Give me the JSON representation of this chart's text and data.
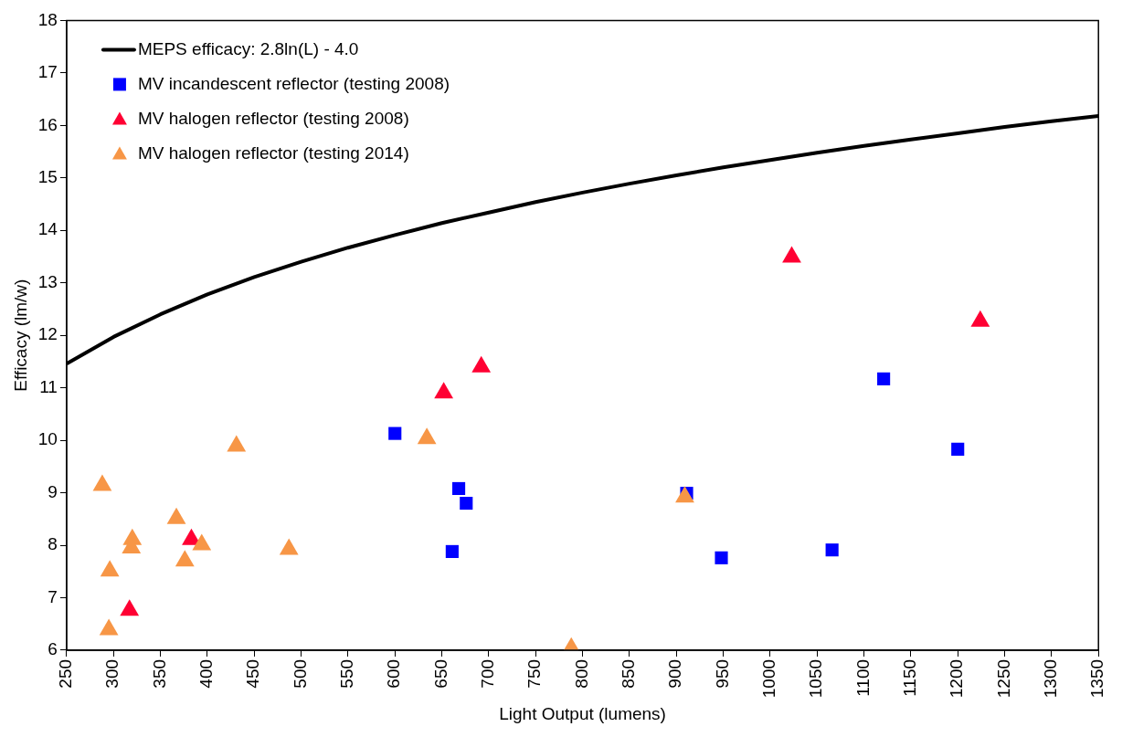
{
  "chart_data": {
    "type": "scatter",
    "xlabel": "Light Output (lumens)",
    "ylabel": "Efficacy (lm/w)",
    "xlim": [
      250,
      1350
    ],
    "xticks": [
      250,
      300,
      350,
      400,
      450,
      500,
      550,
      600,
      650,
      700,
      750,
      800,
      850,
      900,
      950,
      1000,
      1050,
      1100,
      1150,
      1200,
      1250,
      1300,
      1350
    ],
    "ylim": [
      6,
      18
    ],
    "yticks": [
      6,
      7,
      8,
      9,
      10,
      11,
      12,
      13,
      14,
      15,
      16,
      17,
      18
    ],
    "grid": false,
    "legend": "top left",
    "series": [
      {
        "name": "MEPS efficacy: 2.8ln(L) - 4.0",
        "type": "line",
        "color": "#000000",
        "marker": "none",
        "line_style": "solid",
        "x": [
          250,
          300,
          350,
          400,
          450,
          500,
          550,
          600,
          650,
          700,
          750,
          800,
          850,
          900,
          950,
          1000,
          1050,
          1100,
          1150,
          1200,
          1250,
          1300,
          1350
        ],
        "values": [
          11.46,
          11.97,
          12.4,
          12.78,
          13.11,
          13.4,
          13.67,
          13.91,
          14.14,
          14.34,
          14.54,
          14.72,
          14.89,
          15.05,
          15.2,
          15.34,
          15.48,
          15.61,
          15.73,
          15.85,
          15.97,
          16.08,
          16.18
        ]
      },
      {
        "name": "MV incandescent reflector (testing 2008)",
        "color": "#0000ff",
        "marker": "square",
        "x": [
          600,
          668,
          676,
          661,
          911,
          948,
          1066,
          1121,
          1200
        ],
        "values": [
          10.13,
          9.08,
          8.8,
          7.88,
          8.99,
          7.76,
          7.91,
          11.17,
          9.83
        ]
      },
      {
        "name": "MV halogen reflector (testing 2008)",
        "color": "#ff0033",
        "marker": "triangle",
        "x": [
          317,
          383,
          652,
          692,
          1023,
          1224
        ],
        "values": [
          6.76,
          8.11,
          10.9,
          11.4,
          13.49,
          12.27
        ]
      },
      {
        "name": "MV halogen reflector (testing 2014)",
        "color": "#f79646",
        "marker": "triangle",
        "x": [
          288,
          431,
          634,
          367,
          320,
          319,
          394,
          376,
          487,
          296,
          295,
          788,
          909
        ],
        "values": [
          9.14,
          9.89,
          10.03,
          8.51,
          8.11,
          7.95,
          8.01,
          7.7,
          7.92,
          7.51,
          6.39,
          6.04,
          8.92
        ]
      }
    ]
  }
}
